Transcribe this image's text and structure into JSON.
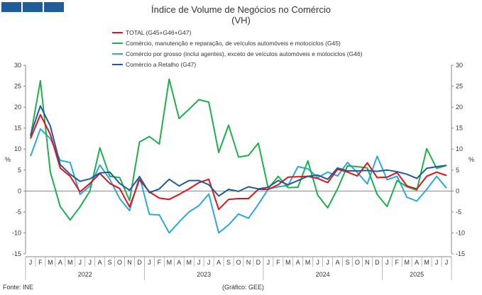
{
  "header": {
    "logo_name": "ine-logo",
    "title": "Índice de Volume de Negócios no Comércio",
    "subtitle": "(VH)"
  },
  "footer": {
    "source": "Fonte: INE",
    "credit": "(Gráfico: GEE)"
  },
  "colors": {
    "total": "#e8111b",
    "g45": "#1db04c",
    "g46": "#29a9e1",
    "g47": "#1f5c99",
    "axis": "#888888",
    "grid": "#bbbbbb"
  },
  "chart_data": {
    "type": "line",
    "ylabel_left": "%",
    "ylabel_right": "%",
    "ylim": [
      -15,
      30
    ],
    "yticks": [
      -15,
      -10,
      -5,
      0,
      5,
      10,
      15,
      20,
      25,
      30
    ],
    "xlabel": "",
    "x": [
      "J",
      "F",
      "M",
      "A",
      "M",
      "J",
      "J",
      "A",
      "S",
      "O",
      "N",
      "D",
      "J",
      "F",
      "M",
      "A",
      "M",
      "J",
      "J",
      "A",
      "S",
      "O",
      "N",
      "D",
      "J",
      "F",
      "M",
      "A",
      "M",
      "J",
      "J",
      "A",
      "S",
      "O",
      "N",
      "D",
      "J",
      "F",
      "M",
      "A",
      "M",
      "J",
      "J"
    ],
    "years": [
      {
        "label": "2022",
        "start": 0,
        "end": 11
      },
      {
        "label": "2023",
        "start": 12,
        "end": 23
      },
      {
        "label": "2024",
        "start": 24,
        "end": 35
      },
      {
        "label": "2025",
        "start": 36,
        "end": 42
      }
    ],
    "series": [
      {
        "key": "total",
        "name": "TOTAL (G45+G46+G47)",
        "values": [
          12.5,
          18.2,
          13.5,
          5.5,
          3.5,
          -0.2,
          1.8,
          4.2,
          1.8,
          0.6,
          -3.8,
          2.7,
          -0.2,
          -1.7,
          -2.0,
          -0.8,
          0.5,
          2.0,
          2.8,
          -4.4,
          -2.0,
          -1.8,
          -1.8,
          0.4,
          0.4,
          1.5,
          3.3,
          3.4,
          3.5,
          3.0,
          2.0,
          5.2,
          4.5,
          3.6,
          6.7,
          3.2,
          3.3,
          4.4,
          1.2,
          0.5,
          3.5,
          4.5,
          3.7
        ]
      },
      {
        "key": "g45",
        "name": "Comércio, manutenção e reparação, de veículos automóveis e motociclos (G45)",
        "values": [
          13.0,
          26.3,
          4.5,
          -3.7,
          -6.9,
          -3.8,
          0.0,
          10.3,
          3.5,
          3.2,
          -2.3,
          11.7,
          13.0,
          11.2,
          26.7,
          17.3,
          19.5,
          21.8,
          21.2,
          9.2,
          15.7,
          8.1,
          8.5,
          11.4,
          0.6,
          3.5,
          0.8,
          0.9,
          7.2,
          -1.0,
          -4.0,
          0.5,
          6.0,
          5.8,
          5.5,
          -0.8,
          -3.7,
          2.5,
          1.0,
          0.2,
          10.1,
          5.4,
          6.1
        ]
      },
      {
        "key": "g46",
        "name": "Comércio por grosso (inclui agentes), exceto de veículos automóveis e motociclos (G46)",
        "values": [
          8.3,
          14.8,
          12.5,
          7.3,
          6.8,
          -0.8,
          1.2,
          6.2,
          2.8,
          -1.8,
          -4.7,
          3.5,
          -5.6,
          -5.7,
          -10.0,
          -7.4,
          -5.0,
          -3.5,
          -0.7,
          -10.0,
          -8.1,
          -5.5,
          -6.5,
          -3.2,
          0.5,
          1.0,
          1.3,
          5.8,
          5.3,
          3.2,
          4.5,
          3.6,
          6.8,
          4.4,
          1.7,
          8.3,
          2.7,
          3.5,
          -1.5,
          -2.4,
          0.4,
          3.5,
          0.7
        ]
      },
      {
        "key": "g47",
        "name": "Comércio a Retalho (G47)",
        "values": [
          13.3,
          20.3,
          15.5,
          6.3,
          4.0,
          2.3,
          2.9,
          4.3,
          4.5,
          1.8,
          0.2,
          3.4,
          -0.4,
          0.5,
          2.8,
          1.2,
          2.5,
          2.5,
          1.5,
          -1.2,
          0.4,
          -0.1,
          1.0,
          0.5,
          0.9,
          2.5,
          1.5,
          2.5,
          3.5,
          3.8,
          2.8,
          5.5,
          4.8,
          4.8,
          4.9,
          4.7,
          5.0,
          4.6,
          4.0,
          3.0,
          5.4,
          5.8,
          6.1
        ]
      }
    ]
  }
}
